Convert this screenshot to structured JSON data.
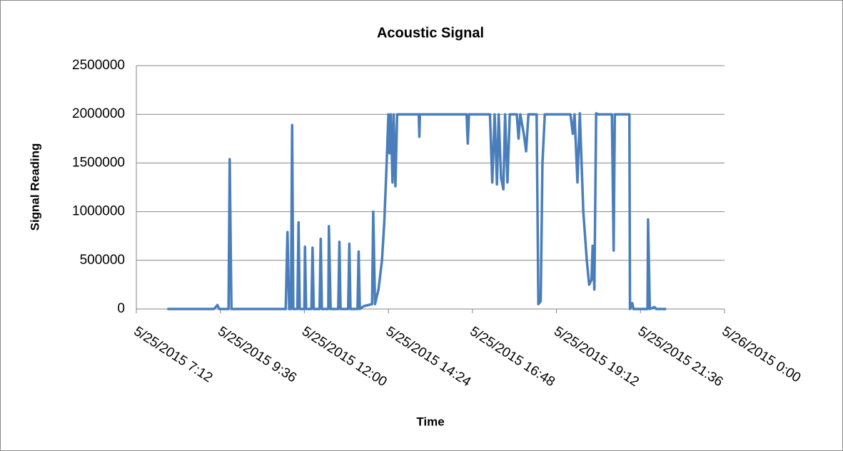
{
  "chart_data": {
    "type": "line",
    "title": "Acoustic Signal",
    "x_label": "Time",
    "y_label": "Signal Reading",
    "xlim": [
      "5/25/2015 7:12",
      "5/26/2015 0:00"
    ],
    "xticks": [
      "5/25/2015 7:12",
      "5/25/2015 9:36",
      "5/25/2015 12:00",
      "5/25/2015 14:24",
      "5/25/2015 16:48",
      "5/25/2015 19:12",
      "5/25/2015 21:36",
      "5/26/2015 0:00"
    ],
    "ylim": [
      0,
      2500000
    ],
    "yticks": [
      0,
      500000,
      1000000,
      1500000,
      2000000,
      2500000
    ],
    "grid": true,
    "series": [
      {
        "name": "Signal Reading",
        "color": "#4a7ebb",
        "x": [
          "5/25/2015 8:05",
          "5/25/2015 9:25",
          "5/25/2015 9:31",
          "5/25/2015 9:34",
          "5/25/2015 9:50",
          "5/25/2015 9:52",
          "5/25/2015 9:55",
          "5/25/2015 11:28",
          "5/25/2015 11:31",
          "5/25/2015 11:34",
          "5/25/2015 11:37",
          "5/25/2015 11:39",
          "5/25/2015 11:41",
          "5/25/2015 11:48",
          "5/25/2015 11:50",
          "5/25/2015 11:52",
          "5/25/2015 12:00",
          "5/25/2015 12:01",
          "5/25/2015 12:03",
          "5/25/2015 12:12",
          "5/25/2015 12:14",
          "5/25/2015 12:16",
          "5/25/2015 12:26",
          "5/25/2015 12:28",
          "5/25/2015 12:30",
          "5/25/2015 12:41",
          "5/25/2015 12:42",
          "5/25/2015 12:45",
          "5/25/2015 12:58",
          "5/25/2015 13:00",
          "5/25/2015 13:02",
          "5/25/2015 13:15",
          "5/25/2015 13:17",
          "5/25/2015 13:19",
          "5/25/2015 13:31",
          "5/25/2015 13:33",
          "5/25/2015 13:35",
          "5/25/2015 13:42",
          "5/25/2015 13:56",
          "5/25/2015 13:58",
          "5/25/2015 14:01",
          "5/25/2015 14:07",
          "5/25/2015 14:13",
          "5/25/2015 14:17",
          "5/25/2015 14:21",
          "5/25/2015 14:24",
          "5/25/2015 14:26",
          "5/25/2015 14:28",
          "5/25/2015 14:31",
          "5/25/2015 14:33",
          "5/25/2015 14:36",
          "5/25/2015 14:39",
          "5/25/2015 15:16",
          "5/25/2015 15:17",
          "5/25/2015 15:18",
          "5/25/2015 16:38",
          "5/25/2015 16:40",
          "5/25/2015 16:42",
          "5/25/2015 17:18",
          "5/25/2015 17:22",
          "5/25/2015 17:26",
          "5/25/2015 17:30",
          "5/25/2015 17:33",
          "5/25/2015 17:37",
          "5/25/2015 17:41",
          "5/25/2015 17:44",
          "5/25/2015 17:48",
          "5/25/2015 17:52",
          "5/25/2015 18:04",
          "5/25/2015 18:07",
          "5/25/2015 18:10",
          "5/25/2015 18:16",
          "5/25/2015 18:20",
          "5/25/2015 18:24",
          "5/25/2015 18:38",
          "5/25/2015 18:41",
          "5/25/2015 18:45",
          "5/25/2015 18:48",
          "5/25/2015 18:52",
          "5/25/2015 19:36",
          "5/25/2015 19:40",
          "5/25/2015 19:43",
          "5/25/2015 19:48",
          "5/25/2015 19:52",
          "5/25/2015 19:58",
          "5/25/2015 20:04",
          "5/25/2015 20:08",
          "5/25/2015 20:12",
          "5/25/2015 20:14",
          "5/25/2015 20:17",
          "5/25/2015 20:20",
          "5/25/2015 20:23",
          "5/25/2015 20:47",
          "5/25/2015 20:50",
          "5/25/2015 20:52",
          "5/25/2015 21:17",
          "5/25/2015 21:18",
          "5/25/2015 21:22",
          "5/25/2015 21:24",
          "5/25/2015 21:48",
          "5/25/2015 21:49",
          "5/25/2015 21:52",
          "5/25/2015 22:00",
          "5/25/2015 22:03",
          "5/25/2015 22:20"
        ],
        "values": [
          0,
          0,
          40000,
          0,
          0,
          1540000,
          0,
          0,
          790000,
          0,
          0,
          1890000,
          0,
          0,
          890000,
          0,
          0,
          640000,
          0,
          0,
          630000,
          0,
          0,
          720000,
          0,
          0,
          850000,
          0,
          0,
          690000,
          0,
          0,
          670000,
          0,
          0,
          590000,
          0,
          30000,
          50000,
          1000000,
          50000,
          200000,
          500000,
          900000,
          1500000,
          2000000,
          1600000,
          2000000,
          1300000,
          2000000,
          1260000,
          2000000,
          2000000,
          1770000,
          2000000,
          2000000,
          1700000,
          2000000,
          2000000,
          1300000,
          2000000,
          1280000,
          2000000,
          1350000,
          1230000,
          2000000,
          1300000,
          2000000,
          2000000,
          1750000,
          2000000,
          1800000,
          1620000,
          2000000,
          2000000,
          50000,
          80000,
          1500000,
          2000000,
          2000000,
          1800000,
          2000000,
          1300000,
          2010000,
          1000000,
          500000,
          250000,
          300000,
          650000,
          200000,
          2010000,
          2000000,
          2000000,
          600000,
          2000000,
          2000000,
          0,
          60000,
          0,
          0,
          920000,
          0,
          20000,
          0,
          0
        ]
      }
    ]
  }
}
